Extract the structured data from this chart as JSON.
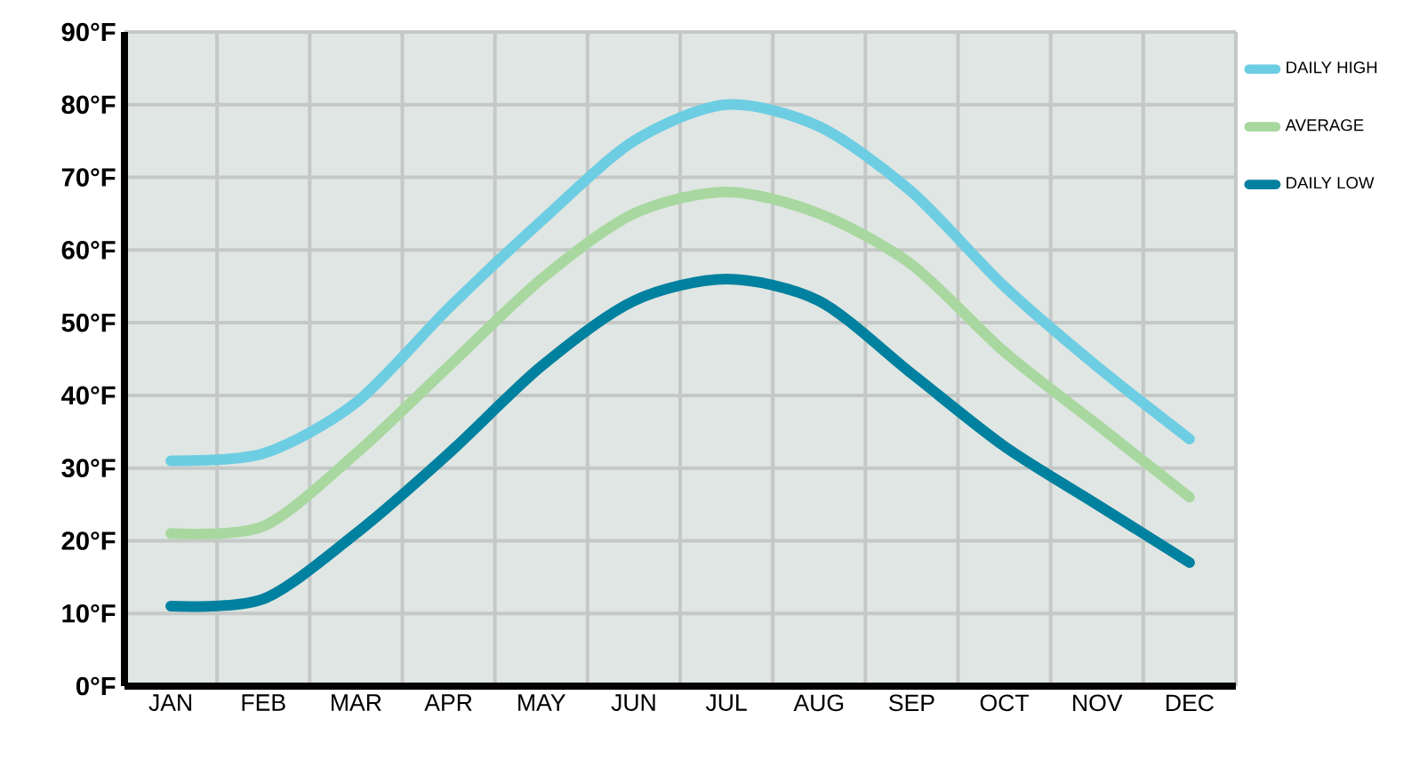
{
  "chart_data": {
    "type": "line",
    "categories": [
      "JAN",
      "FEB",
      "MAR",
      "APR",
      "MAY",
      "JUN",
      "JUL",
      "AUG",
      "SEP",
      "OCT",
      "NOV",
      "DEC"
    ],
    "series": [
      {
        "name": "DAILY HIGH",
        "color": "#6dcde3",
        "values": [
          31,
          32,
          39,
          52,
          64,
          75,
          80,
          77,
          68,
          55,
          44,
          34
        ]
      },
      {
        "name": "AVERAGE",
        "color": "#a8d8a0",
        "values": [
          21,
          22,
          32,
          44,
          56,
          65,
          68,
          65,
          58,
          46,
          36,
          26
        ]
      },
      {
        "name": "DAILY LOW",
        "color": "#00819f",
        "values": [
          11,
          12,
          21,
          32,
          44,
          53,
          56,
          53,
          43,
          33,
          25,
          17
        ]
      }
    ],
    "ylim": [
      0,
      90
    ],
    "yticks": [
      {
        "value": 0,
        "label": "0°F"
      },
      {
        "value": 10,
        "label": "10°F"
      },
      {
        "value": 20,
        "label": "20°F"
      },
      {
        "value": 30,
        "label": "30°F"
      },
      {
        "value": 40,
        "label": "40°F"
      },
      {
        "value": 50,
        "label": "50°F"
      },
      {
        "value": 60,
        "label": "60°F"
      },
      {
        "value": 70,
        "label": "70°F"
      },
      {
        "value": 80,
        "label": "80°F"
      },
      {
        "value": 90,
        "label": "90°F"
      }
    ],
    "grid": true,
    "legend": "right",
    "marker": "none",
    "line_style": "solid"
  }
}
